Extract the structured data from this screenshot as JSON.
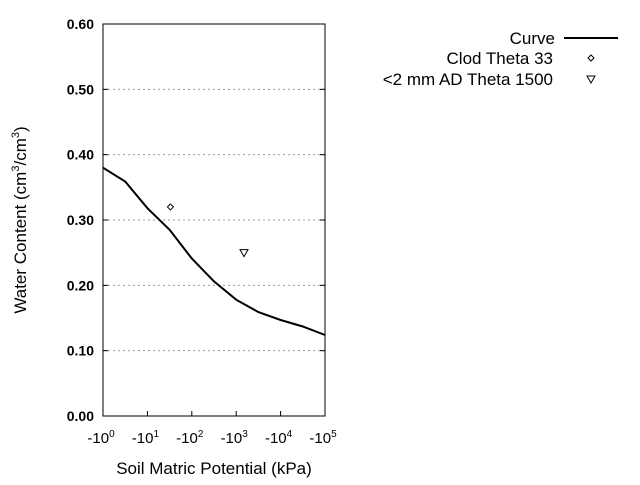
{
  "chart_data": {
    "type": "line",
    "title": "",
    "xlabel": "Soil Matric Potential (kPa)",
    "ylabel": "Water Content (cm3/cm3)",
    "ylabel_parts": {
      "pre": "Water Content (cm",
      "sup1": "3",
      "mid": "/cm",
      "sup2": "3",
      "post": ")"
    },
    "x_scale": "log (negative)",
    "xlim": [
      -1,
      -100000
    ],
    "ylim": [
      0,
      0.6
    ],
    "x_ticks": [
      {
        "base": "-10",
        "exp": "0"
      },
      {
        "base": "-10",
        "exp": "1"
      },
      {
        "base": "-10",
        "exp": "2"
      },
      {
        "base": "-10",
        "exp": "3"
      },
      {
        "base": "-10",
        "exp": "4"
      },
      {
        "base": "-10",
        "exp": "5"
      }
    ],
    "y_ticks": [
      "0.00",
      "0.10",
      "0.20",
      "0.30",
      "0.40",
      "0.50",
      "0.60"
    ],
    "grid": "horizontal dotted",
    "legend_position": "top-right",
    "series": [
      {
        "name": "Curve",
        "type": "line",
        "color": "#000000",
        "x": [
          -1,
          -3.16,
          -10,
          -31.6,
          -100,
          -316,
          -1000,
          -3160,
          -10000,
          -31600,
          -100000
        ],
        "y": [
          0.38,
          0.359,
          0.318,
          0.285,
          0.241,
          0.206,
          0.178,
          0.159,
          0.147,
          0.137,
          0.124
        ]
      },
      {
        "name": "Clod Theta 33",
        "type": "scatter",
        "marker": "diamond",
        "x": [
          -33
        ],
        "y": [
          0.32
        ]
      },
      {
        "name": "<2 mm AD Theta 1500",
        "type": "scatter",
        "marker": "triangle-down",
        "x": [
          -1500
        ],
        "y": [
          0.25
        ]
      }
    ]
  }
}
